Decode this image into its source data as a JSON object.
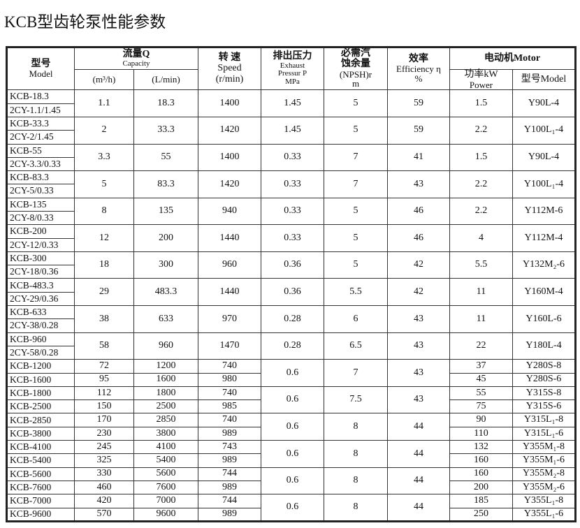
{
  "title": "KCB型齿轮泵性能参数",
  "headers": {
    "model_cn": "型号",
    "model_en": "Model",
    "capacity_cn": "流量Q",
    "capacity_en": "Capacity",
    "m3h": "(m³/h)",
    "lmin": "(L/min)",
    "speed_cn": "转 速",
    "speed_en": "Speed",
    "speed_unit": "(r/min)",
    "pressure_cn": "排出压力",
    "pressure_en1": "Exhaust",
    "pressure_en2": "Pressur P",
    "pressure_unit": "MPa",
    "npsh_cn1": "必需汽",
    "npsh_cn2": "蚀余量",
    "npsh_en": "(NPSH)r",
    "npsh_unit": "m",
    "eff_cn": "效率",
    "eff_en": "Efficiency η",
    "eff_unit": "%",
    "motor": "电动机Motor",
    "power_cn": "功率kW",
    "power_en": "Power",
    "motor_model": "型号Model"
  },
  "single_rows": [
    {
      "models": [
        "KCB-18.3",
        "2CY-1.1/1.45"
      ],
      "m3h": "1.1",
      "lmin": "18.3",
      "speed": "1400",
      "pressure": "1.45",
      "npsh": "5",
      "eff": "59",
      "power": "1.5",
      "motor": "Y90L-4"
    },
    {
      "models": [
        "KCB-33.3",
        "2CY-2/1.45"
      ],
      "m3h": "2",
      "lmin": "33.3",
      "speed": "1420",
      "pressure": "1.45",
      "npsh": "5",
      "eff": "59",
      "power": "2.2",
      "motor": "Y100L₁-4"
    },
    {
      "models": [
        "KCB-55",
        "2CY-3.3/0.33"
      ],
      "m3h": "3.3",
      "lmin": "55",
      "speed": "1400",
      "pressure": "0.33",
      "npsh": "7",
      "eff": "41",
      "power": "1.5",
      "motor": "Y90L-4"
    },
    {
      "models": [
        "KCB-83.3",
        "2CY-5/0.33"
      ],
      "m3h": "5",
      "lmin": "83.3",
      "speed": "1420",
      "pressure": "0.33",
      "npsh": "7",
      "eff": "43",
      "power": "2.2",
      "motor": "Y100L₁-4"
    },
    {
      "models": [
        "KCB-135",
        "2CY-8/0.33"
      ],
      "m3h": "8",
      "lmin": "135",
      "speed": "940",
      "pressure": "0.33",
      "npsh": "5",
      "eff": "46",
      "power": "2.2",
      "motor": "Y112M-6"
    },
    {
      "models": [
        "KCB-200",
        "2CY-12/0.33"
      ],
      "m3h": "12",
      "lmin": "200",
      "speed": "1440",
      "pressure": "0.33",
      "npsh": "5",
      "eff": "46",
      "power": "4",
      "motor": "Y112M-4"
    },
    {
      "models": [
        "KCB-300",
        "2CY-18/0.36"
      ],
      "m3h": "18",
      "lmin": "300",
      "speed": "960",
      "pressure": "0.36",
      "npsh": "5",
      "eff": "42",
      "power": "5.5",
      "motor": "Y132M₂-6"
    },
    {
      "models": [
        "KCB-483.3",
        "2CY-29/0.36"
      ],
      "m3h": "29",
      "lmin": "483.3",
      "speed": "1440",
      "pressure": "0.36",
      "npsh": "5.5",
      "eff": "42",
      "power": "11",
      "motor": "Y160M-4"
    },
    {
      "models": [
        "KCB-633",
        "2CY-38/0.28"
      ],
      "m3h": "38",
      "lmin": "633",
      "speed": "970",
      "pressure": "0.28",
      "npsh": "6",
      "eff": "43",
      "power": "11",
      "motor": "Y160L-6"
    },
    {
      "models": [
        "KCB-960",
        "2CY-58/0.28"
      ],
      "m3h": "58",
      "lmin": "960",
      "speed": "1470",
      "pressure": "0.28",
      "npsh": "6.5",
      "eff": "43",
      "power": "22",
      "motor": "Y180L-4"
    }
  ],
  "paired_rows": [
    {
      "pressure": "0.6",
      "npsh": "7",
      "eff": "43",
      "subs": [
        {
          "model": "KCB-1200",
          "m3h": "72",
          "lmin": "1200",
          "speed": "740",
          "power": "37",
          "motor": "Y280S-8"
        },
        {
          "model": "KCB-1600",
          "m3h": "95",
          "lmin": "1600",
          "speed": "980",
          "power": "45",
          "motor": "Y280S-6"
        }
      ]
    },
    {
      "pressure": "0.6",
      "npsh": "7.5",
      "eff": "43",
      "subs": [
        {
          "model": "KCB-1800",
          "m3h": "112",
          "lmin": "1800",
          "speed": "740",
          "power": "55",
          "motor": "Y315S-8"
        },
        {
          "model": "KCB-2500",
          "m3h": "150",
          "lmin": "2500",
          "speed": "985",
          "power": "75",
          "motor": "Y315S-6"
        }
      ]
    },
    {
      "pressure": "0.6",
      "npsh": "8",
      "eff": "44",
      "subs": [
        {
          "model": "KCB-2850",
          "m3h": "170",
          "lmin": "2850",
          "speed": "740",
          "power": "90",
          "motor": "Y315L₁-8"
        },
        {
          "model": "KCB-3800",
          "m3h": "230",
          "lmin": "3800",
          "speed": "989",
          "power": "110",
          "motor": "Y315L₁-6"
        }
      ]
    },
    {
      "pressure": "0.6",
      "npsh": "8",
      "eff": "44",
      "subs": [
        {
          "model": "KCB-4100",
          "m3h": "245",
          "lmin": "4100",
          "speed": "743",
          "power": "132",
          "motor": "Y355M₁-8"
        },
        {
          "model": "KCB-5400",
          "m3h": "325",
          "lmin": "5400",
          "speed": "989",
          "power": "160",
          "motor": "Y355M₁-6"
        }
      ]
    },
    {
      "pressure": "0.6",
      "npsh": "8",
      "eff": "44",
      "subs": [
        {
          "model": "KCB-5600",
          "m3h": "330",
          "lmin": "5600",
          "speed": "744",
          "power": "160",
          "motor": "Y355M₂-8"
        },
        {
          "model": "KCB-7600",
          "m3h": "460",
          "lmin": "7600",
          "speed": "989",
          "power": "200",
          "motor": "Y355M₂-6"
        }
      ]
    },
    {
      "pressure": "0.6",
      "npsh": "8",
      "eff": "44",
      "subs": [
        {
          "model": "KCB-7000",
          "m3h": "420",
          "lmin": "7000",
          "speed": "744",
          "power": "185",
          "motor": "Y355L₁-8"
        },
        {
          "model": "KCB-9600",
          "m3h": "570",
          "lmin": "9600",
          "speed": "989",
          "power": "250",
          "motor": "Y355L₁-6"
        }
      ]
    }
  ]
}
